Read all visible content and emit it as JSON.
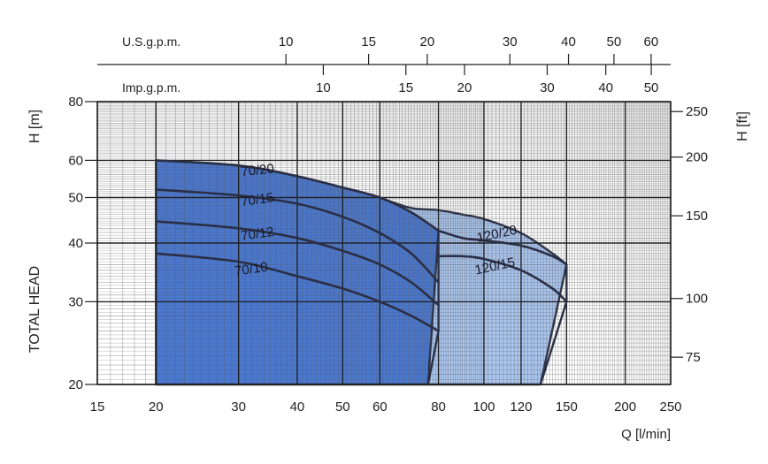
{
  "chart_data": {
    "type": "line",
    "title": "",
    "xlabel": "Q [l/min]",
    "ylabel_left": "H [m]",
    "ylabel_right": "H [ft]",
    "side_label": "TOTAL HEAD",
    "x_scale": "log",
    "y_scale": "log",
    "xlim": [
      15,
      250
    ],
    "ylim": [
      20,
      80
    ],
    "grid": true,
    "x_ticks": [
      "15",
      "20",
      "30",
      "40",
      "50",
      "60",
      "80",
      "100",
      "120",
      "150",
      "200",
      "250"
    ],
    "y_ticks": [
      "20",
      "30",
      "40",
      "50",
      "60",
      "80"
    ],
    "top_axes": [
      {
        "name": "U.S.g.p.m.",
        "ticks": [
          {
            "label": "10",
            "q": 37.85
          },
          {
            "label": "15",
            "q": 56.78
          },
          {
            "label": "20",
            "q": 75.71
          },
          {
            "label": "30",
            "q": 113.56
          },
          {
            "label": "40",
            "q": 151.42
          },
          {
            "label": "50",
            "q": 189.27
          },
          {
            "label": "60",
            "q": 227.12
          }
        ]
      },
      {
        "name": "Imp.g.p.m.",
        "ticks": [
          {
            "label": "10",
            "q": 45.46
          },
          {
            "label": "15",
            "q": 68.19
          },
          {
            "label": "20",
            "q": 90.92
          },
          {
            "label": "30",
            "q": 136.38
          },
          {
            "label": "40",
            "q": 181.84
          },
          {
            "label": "50",
            "q": 227.3
          }
        ]
      }
    ],
    "right_axis_ticks": [
      {
        "label": "75",
        "h": 22.86
      },
      {
        "label": "100",
        "h": 30.48
      },
      {
        "label": "150",
        "h": 45.72
      },
      {
        "label": "200",
        "h": 60.96
      },
      {
        "label": "250",
        "h": 76.2
      }
    ],
    "regions": [
      {
        "name": "70",
        "color": "#4a78d0",
        "left_edge_q": 20,
        "bottom_right_q": 76,
        "top_curve": [
          [
            20,
            60
          ],
          [
            30,
            58.5
          ],
          [
            40,
            55.5
          ],
          [
            50,
            52.5
          ],
          [
            60,
            50
          ],
          [
            70,
            46.5
          ],
          [
            80,
            42.5
          ]
        ]
      },
      {
        "name": "120",
        "color": "#aac5ee",
        "bottom_left_q": 76,
        "bottom_right_q": 132,
        "top_curve": [
          [
            60,
            50
          ],
          [
            70,
            47.5
          ],
          [
            80,
            47
          ],
          [
            90,
            46
          ],
          [
            100,
            45
          ],
          [
            120,
            42
          ],
          [
            140,
            38
          ],
          [
            150,
            36
          ]
        ]
      }
    ],
    "series": [
      {
        "name": "70/20",
        "points": [
          [
            20,
            60
          ],
          [
            30,
            58.5
          ],
          [
            40,
            55.5
          ],
          [
            50,
            52.5
          ],
          [
            60,
            50
          ],
          [
            70,
            46.5
          ],
          [
            80,
            42.5
          ]
        ]
      },
      {
        "name": "70/15",
        "points": [
          [
            20,
            52
          ],
          [
            30,
            50.5
          ],
          [
            40,
            48.5
          ],
          [
            50,
            45.5
          ],
          [
            60,
            42
          ],
          [
            70,
            38
          ],
          [
            80,
            33
          ]
        ]
      },
      {
        "name": "70/12",
        "points": [
          [
            20,
            44.5
          ],
          [
            30,
            43
          ],
          [
            40,
            41
          ],
          [
            50,
            38.5
          ],
          [
            60,
            36
          ],
          [
            70,
            33
          ],
          [
            80,
            29.5
          ]
        ]
      },
      {
        "name": "70/10",
        "points": [
          [
            20,
            38
          ],
          [
            30,
            36.5
          ],
          [
            40,
            34
          ],
          [
            50,
            32
          ],
          [
            60,
            30
          ],
          [
            70,
            28
          ],
          [
            80,
            26
          ]
        ]
      },
      {
        "name": "120/20",
        "points": [
          [
            80,
            42.5
          ],
          [
            90,
            41
          ],
          [
            100,
            40.5
          ],
          [
            120,
            39.5
          ],
          [
            140,
            37.5
          ],
          [
            150,
            36
          ]
        ]
      },
      {
        "name": "120/15",
        "points": [
          [
            80,
            37.5
          ],
          [
            90,
            37.5
          ],
          [
            100,
            37
          ],
          [
            120,
            35
          ],
          [
            140,
            32
          ],
          [
            150,
            30
          ]
        ]
      }
    ],
    "curve_labels": [
      {
        "text": "70/20",
        "q": 33,
        "h": 56,
        "angle": -6
      },
      {
        "text": "70/15",
        "q": 33,
        "h": 48.5,
        "angle": -8
      },
      {
        "text": "70/12",
        "q": 33,
        "h": 41,
        "angle": -8
      },
      {
        "text": "70/10",
        "q": 32,
        "h": 34.5,
        "angle": -8
      },
      {
        "text": "120/20",
        "q": 107,
        "h": 41,
        "angle": -12
      },
      {
        "text": "120/15",
        "q": 106,
        "h": 35,
        "angle": -12
      }
    ]
  }
}
